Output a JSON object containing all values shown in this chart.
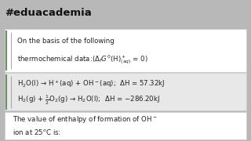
{
  "title": "#eduacademia",
  "title_color": "#111111",
  "title_fontsize": 9.5,
  "bg_color": "#b8b8b8",
  "box1_color": "#ffffff",
  "box2_color": "#e8e8e8",
  "box3_color": "#ffffff",
  "box1_line1": "On the basis of the following",
  "box1_line2": "thermochemical data:($\\Delta_f G^0$(H)$^+_{(aq)}$ = 0)",
  "box2_line1": "H$_2$O(l) → H$^+$(aq) + OH$^-$(aq);  ΔH = 57.32kJ",
  "box2_line2": "H$_2$(g) + $\\frac{1}{2}$O$_2$(g) → H$_2$O(l);  ΔH = −286.20kJ",
  "box3_line1": "The value of enthalpy of formation of OH$^-$",
  "box3_line2": "ion at 25$^o$C is:",
  "text_color": "#222222",
  "text_fontsize": 6.2,
  "accent_color_dark": "#6b8f6b",
  "accent_color_light": "#aaaaaa"
}
